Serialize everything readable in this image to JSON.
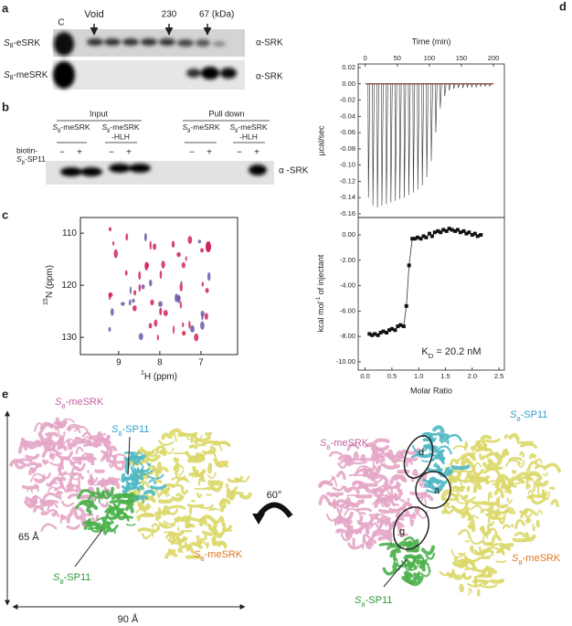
{
  "panel_a": {
    "label": "a",
    "lane": "C",
    "markers": [
      "Void",
      "230",
      "67 (kDa)"
    ],
    "rows": [
      "S8-eSRK",
      "S8-meSRK"
    ],
    "antibody": [
      "α-SRK",
      "α-SRK"
    ]
  },
  "panel_b": {
    "label": "b",
    "groups": [
      "Input",
      "Pull down"
    ],
    "constructs": [
      [
        "S8-meSRK"
      ],
      [
        "S8-meSRK",
        "-HLH"
      ],
      [
        "S8-meSRK"
      ],
      [
        "S8-meSRK",
        "-HLH"
      ]
    ],
    "treatment": [
      "biotin-",
      "S8-SP11"
    ],
    "signs": [
      "−",
      "+",
      "−",
      "+",
      "−",
      "+",
      "−",
      "+"
    ],
    "antibody": "α -SRK"
  },
  "panel_c": {
    "label": "c",
    "xlabel": "1H (ppm)",
    "ylabel": "15N (ppm)",
    "xlim": [
      9.93,
      6.11
    ],
    "xticks": [
      9,
      8,
      7
    ],
    "ylim": [
      107,
      133.3
    ],
    "yticks": [
      110,
      120,
      130
    ]
  },
  "panel_d": {
    "label": "d",
    "top": {
      "xlabel": "Time (min)",
      "ylabel": "µcal/sec",
      "xlim": [
        -11,
        217
      ],
      "xticks": [
        0,
        50,
        100,
        150,
        200
      ],
      "ylim": [
        -0.1645,
        0.0245
      ],
      "yticks": [
        0.02,
        {
          "value": 0,
          "label": "0.00"
        },
        -0.02,
        -0.04,
        -0.06,
        -0.08,
        {
          "value": -0.1,
          "label": "-0.10"
        },
        -0.12,
        -0.14,
        -0.16
      ],
      "times": [
        5,
        12,
        19,
        26,
        33,
        40,
        47,
        54,
        61,
        68,
        75,
        82,
        89,
        96,
        103,
        110,
        117,
        124,
        131,
        138,
        145,
        152,
        159,
        166,
        173,
        180,
        187,
        194
      ],
      "peaks": [
        -0.14,
        -0.15,
        -0.152,
        -0.15,
        -0.148,
        -0.146,
        -0.144,
        -0.142,
        -0.14,
        -0.137,
        -0.134,
        -0.13,
        -0.125,
        -0.115,
        -0.095,
        -0.06,
        -0.03,
        -0.015,
        -0.008,
        -0.006,
        -0.005,
        -0.005,
        -0.004,
        -0.004,
        -0.004,
        -0.003,
        -0.003,
        -0.003
      ]
    },
    "bottom": {
      "xlabel": "Molar Ratio",
      "ylabel": "kcal mol-1 of injectant",
      "annotation": "KD = 20.2 nM",
      "xlim": [
        -0.13,
        2.6
      ],
      "xticks": [
        {
          "value": 0,
          "label": "0.0"
        },
        0.5,
        {
          "value": 1,
          "label": "1.0"
        },
        1.5,
        {
          "value": 2,
          "label": "2.0"
        },
        2.5
      ],
      "ylim": [
        -10.65,
        1.37
      ],
      "yticks": [
        {
          "value": 0,
          "label": "0.00"
        },
        {
          "value": -2,
          "label": "-2.00"
        },
        {
          "value": -4,
          "label": "-4.00"
        },
        {
          "value": -6,
          "label": "-6.00"
        },
        {
          "value": -8,
          "label": "-8.00"
        },
        {
          "value": -10,
          "label": "-10.00"
        }
      ],
      "x": [
        0.08,
        0.13,
        0.18,
        0.24,
        0.29,
        0.34,
        0.4,
        0.45,
        0.5,
        0.56,
        0.61,
        0.66,
        0.72,
        0.77,
        0.82,
        0.88,
        0.93,
        0.98,
        1.04,
        1.09,
        1.14,
        1.2,
        1.25,
        1.3,
        1.36,
        1.41,
        1.46,
        1.52,
        1.57,
        1.62,
        1.68,
        1.73,
        1.78,
        1.84,
        1.89,
        1.94,
        2.0,
        2.05,
        2.1,
        2.16
      ],
      "values": [
        -7.8,
        -7.9,
        -7.8,
        -7.9,
        -7.7,
        -7.6,
        -7.7,
        -7.5,
        -7.4,
        -7.5,
        -7.2,
        -7.1,
        -7.2,
        -5.6,
        -2.4,
        -0.3,
        -0.3,
        -0.2,
        -0.3,
        -0.1,
        -0.2,
        0.1,
        -0.1,
        0.2,
        0.3,
        0.2,
        0.4,
        0.3,
        0.5,
        0.4,
        0.3,
        0.4,
        0.2,
        0.3,
        0.1,
        0.2,
        0.0,
        0.1,
        -0.1,
        0.0
      ]
    }
  },
  "panel_e": {
    "label": "e",
    "left": {
      "receptor_top": "S8-meSRK",
      "ligand_top": "S8-SP11",
      "receptor_bottom": "S8-meSRK",
      "ligand_bottom": "S8-SP11",
      "height": "65 Å",
      "width": "90 Å"
    },
    "rotation": "60°",
    "right": {
      "ligand_top": "S8-SP11",
      "receptor_top": "S8-meSRK",
      "sites": [
        "d",
        "a",
        "g"
      ],
      "receptor_bottom": "S8-meSRK",
      "ligand_bottom": "S8-SP11"
    }
  }
}
